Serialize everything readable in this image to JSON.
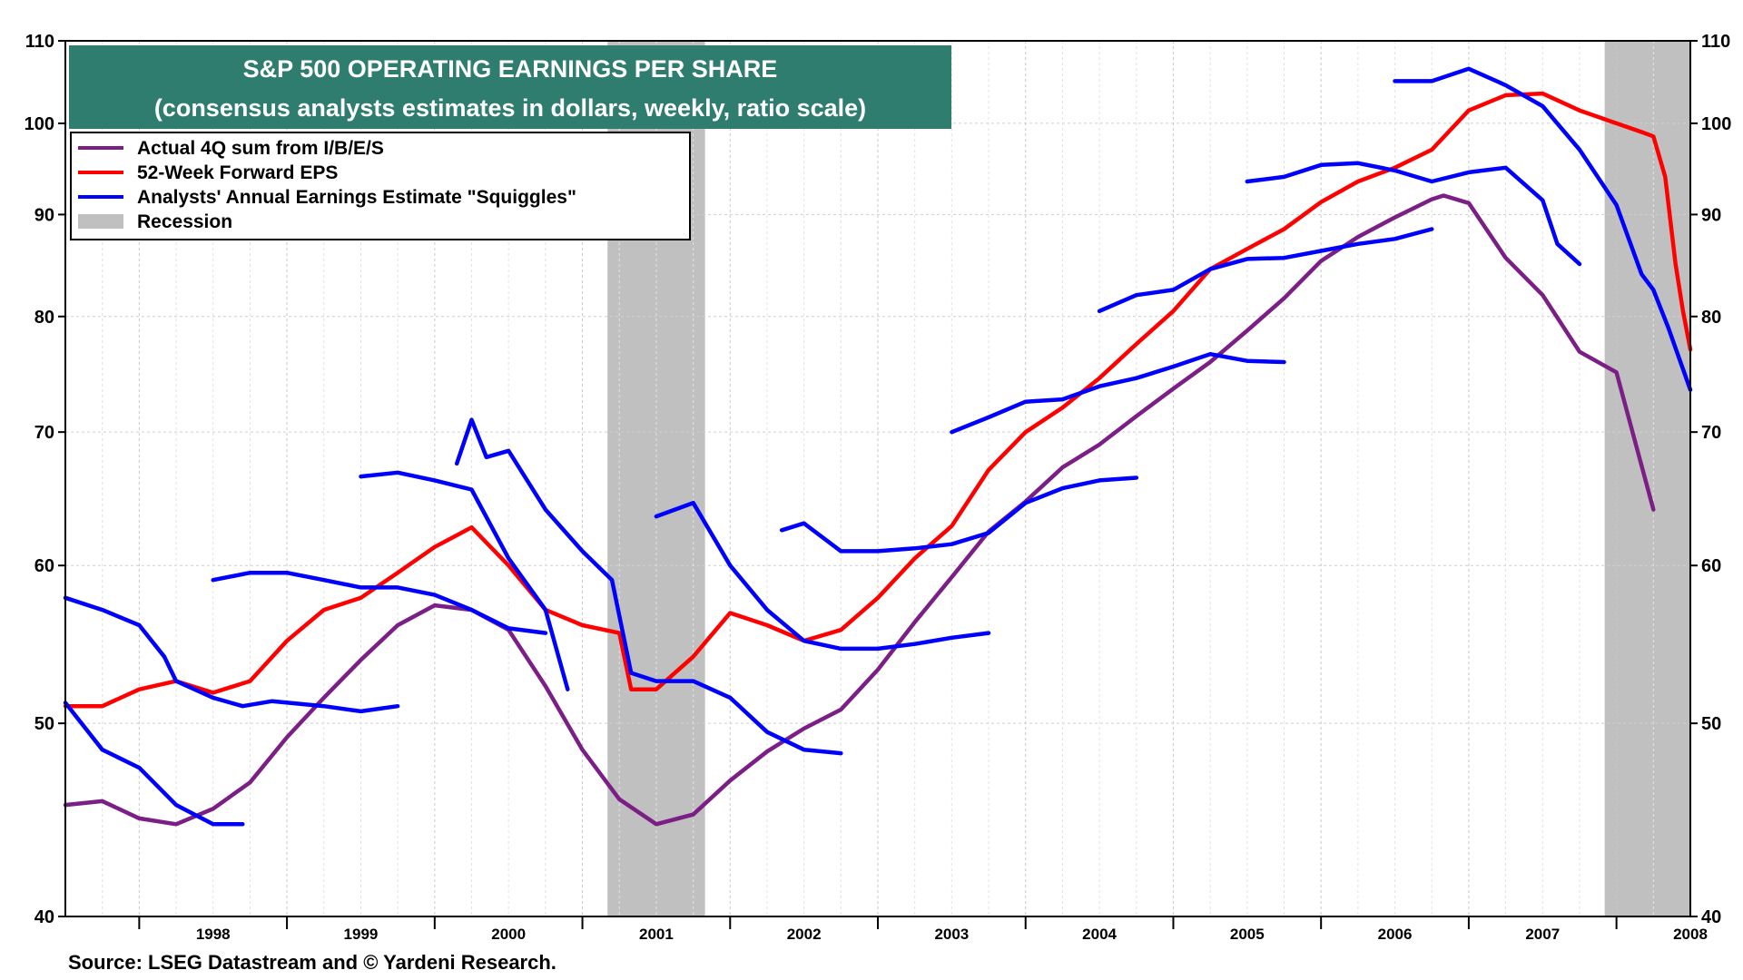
{
  "source": "Source: LSEG Datastream and © Yardeni Research.",
  "chart_data": {
    "type": "line",
    "title": "S&P 500 OPERATING EARNINGS PER SHARE",
    "subtitle": "(consensus analysts estimates in dollars, weekly, ratio scale)",
    "y_scale": "log",
    "ylim": [
      40,
      110
    ],
    "yticks": [
      40,
      50,
      60,
      70,
      80,
      90,
      100,
      110
    ],
    "xlim": [
      1997.5,
      2008.5
    ],
    "xtick_labels": [
      "1998",
      "1999",
      "2000",
      "2001",
      "2002",
      "2003",
      "2004",
      "2005",
      "2006",
      "2007",
      "2008"
    ],
    "grid": true,
    "legend_placement": "top-left",
    "colors": {
      "actual": "#7b1f86",
      "forward": "#ff0000",
      "squiggles": "#0000ff",
      "recession": "#c0c0c0",
      "title_bg": "#2e7d6e"
    },
    "recessions": [
      {
        "start": 2001.17,
        "end": 2001.83
      },
      {
        "start": 2007.92,
        "end": 2008.5
      }
    ],
    "legend": [
      {
        "key": "actual",
        "label": "Actual 4Q sum from  I/B/E/S"
      },
      {
        "key": "forward",
        "label": "52-Week Forward EPS"
      },
      {
        "key": "squiggles",
        "label": "Analysts' Annual Earnings Estimate \"Squiggles\""
      },
      {
        "key": "recession",
        "label": "Recession"
      }
    ],
    "series": [
      {
        "key": "actual",
        "name": "Actual 4Q sum from  I/B/E/S",
        "points": [
          [
            1997.5,
            45.5
          ],
          [
            1997.75,
            45.7
          ],
          [
            1998.0,
            44.8
          ],
          [
            1998.25,
            44.5
          ],
          [
            1998.5,
            45.3
          ],
          [
            1998.75,
            46.7
          ],
          [
            1999.0,
            49.2
          ],
          [
            1999.25,
            51.5
          ],
          [
            1999.5,
            53.8
          ],
          [
            1999.75,
            56.0
          ],
          [
            2000.0,
            57.3
          ],
          [
            2000.25,
            57.0
          ],
          [
            2000.5,
            55.7
          ],
          [
            2000.75,
            52.2
          ],
          [
            2001.0,
            48.5
          ],
          [
            2001.25,
            45.8
          ],
          [
            2001.5,
            44.5
          ],
          [
            2001.75,
            45.0
          ],
          [
            2002.0,
            46.8
          ],
          [
            2002.25,
            48.4
          ],
          [
            2002.5,
            49.7
          ],
          [
            2002.75,
            50.8
          ],
          [
            2003.0,
            53.2
          ],
          [
            2003.25,
            56.2
          ],
          [
            2003.5,
            59.2
          ],
          [
            2003.75,
            62.4
          ],
          [
            2004.0,
            64.6
          ],
          [
            2004.25,
            67.2
          ],
          [
            2004.5,
            69.0
          ],
          [
            2004.75,
            71.3
          ],
          [
            2005.0,
            73.6
          ],
          [
            2005.25,
            75.9
          ],
          [
            2005.5,
            78.7
          ],
          [
            2005.75,
            81.7
          ],
          [
            2006.0,
            85.3
          ],
          [
            2006.25,
            87.7
          ],
          [
            2006.5,
            89.7
          ],
          [
            2006.75,
            91.6
          ],
          [
            2006.83,
            92.0
          ],
          [
            2007.0,
            91.2
          ],
          [
            2007.25,
            85.6
          ],
          [
            2007.5,
            82.0
          ],
          [
            2007.75,
            76.8
          ],
          [
            2008.0,
            75.0
          ],
          [
            2008.25,
            64.0
          ]
        ]
      },
      {
        "key": "forward",
        "name": "52-Week Forward EPS",
        "points": [
          [
            1997.5,
            51.0
          ],
          [
            1997.75,
            51.0
          ],
          [
            1998.0,
            52.0
          ],
          [
            1998.25,
            52.5
          ],
          [
            1998.5,
            51.8
          ],
          [
            1998.75,
            52.5
          ],
          [
            1999.0,
            55.0
          ],
          [
            1999.25,
            57.0
          ],
          [
            1999.5,
            57.8
          ],
          [
            1999.75,
            59.5
          ],
          [
            2000.0,
            61.3
          ],
          [
            2000.25,
            62.7
          ],
          [
            2000.5,
            60.0
          ],
          [
            2000.75,
            57.0
          ],
          [
            2001.0,
            56.0
          ],
          [
            2001.25,
            55.5
          ],
          [
            2001.33,
            52.0
          ],
          [
            2001.5,
            52.0
          ],
          [
            2001.75,
            54.0
          ],
          [
            2002.0,
            56.8
          ],
          [
            2002.25,
            56.0
          ],
          [
            2002.5,
            55.0
          ],
          [
            2002.75,
            55.7
          ],
          [
            2003.0,
            57.8
          ],
          [
            2003.25,
            60.5
          ],
          [
            2003.5,
            62.8
          ],
          [
            2003.75,
            67.0
          ],
          [
            2004.0,
            70.0
          ],
          [
            2004.25,
            72.0
          ],
          [
            2004.5,
            74.5
          ],
          [
            2004.75,
            77.5
          ],
          [
            2005.0,
            80.5
          ],
          [
            2005.25,
            84.5
          ],
          [
            2005.5,
            86.5
          ],
          [
            2005.75,
            88.5
          ],
          [
            2006.0,
            91.3
          ],
          [
            2006.25,
            93.5
          ],
          [
            2006.5,
            95.0
          ],
          [
            2006.75,
            97.0
          ],
          [
            2007.0,
            101.5
          ],
          [
            2007.25,
            103.3
          ],
          [
            2007.5,
            103.5
          ],
          [
            2007.75,
            101.5
          ],
          [
            2008.0,
            100.0
          ],
          [
            2008.17,
            99.0
          ],
          [
            2008.25,
            98.5
          ],
          [
            2008.33,
            94.0
          ],
          [
            2008.4,
            85.0
          ],
          [
            2008.45,
            80.5
          ],
          [
            2008.5,
            77.0
          ]
        ]
      },
      {
        "key": "squiggles",
        "name": "Analysts' Annual Earnings Estimate \"Squiggles\"",
        "segments": [
          [
            [
              1997.5,
              57.8
            ],
            [
              1997.75,
              57.0
            ],
            [
              1998.0,
              56.0
            ],
            [
              1998.17,
              54.0
            ],
            [
              1998.25,
              52.5
            ],
            [
              1998.5,
              51.5
            ],
            [
              1998.7,
              51.0
            ],
            [
              1998.9,
              51.3
            ],
            [
              1999.25,
              51.0
            ],
            [
              1999.5,
              50.7
            ],
            [
              1999.75,
              51.0
            ]
          ],
          [
            [
              1997.5,
              51.2
            ],
            [
              1997.75,
              48.5
            ],
            [
              1998.0,
              47.5
            ],
            [
              1998.25,
              45.5
            ],
            [
              1998.5,
              44.5
            ],
            [
              1998.7,
              44.5
            ]
          ],
          [
            [
              1998.5,
              59.0
            ],
            [
              1998.75,
              59.5
            ],
            [
              1999.0,
              59.5
            ],
            [
              1999.25,
              59.0
            ],
            [
              1999.5,
              58.5
            ],
            [
              1999.75,
              58.5
            ],
            [
              2000.0,
              58.0
            ],
            [
              2000.25,
              57.0
            ],
            [
              2000.5,
              55.8
            ],
            [
              2000.75,
              55.5
            ]
          ],
          [
            [
              1999.5,
              66.5
            ],
            [
              1999.75,
              66.8
            ],
            [
              2000.0,
              66.2
            ],
            [
              2000.25,
              65.5
            ],
            [
              2000.5,
              60.5
            ],
            [
              2000.75,
              57.0
            ],
            [
              2000.9,
              52.0
            ]
          ],
          [
            [
              2000.15,
              67.5
            ],
            [
              2000.25,
              71.0
            ],
            [
              2000.35,
              68.0
            ],
            [
              2000.5,
              68.5
            ],
            [
              2000.75,
              64.0
            ],
            [
              2001.0,
              61.0
            ],
            [
              2001.2,
              59.0
            ],
            [
              2001.33,
              53.0
            ],
            [
              2001.5,
              52.5
            ],
            [
              2001.75,
              52.5
            ],
            [
              2002.0,
              51.5
            ],
            [
              2002.25,
              49.5
            ],
            [
              2002.5,
              48.5
            ],
            [
              2002.75,
              48.3
            ]
          ],
          [
            [
              2001.5,
              63.5
            ],
            [
              2001.75,
              64.5
            ],
            [
              2002.0,
              60.0
            ],
            [
              2002.25,
              57.0
            ],
            [
              2002.5,
              55.0
            ],
            [
              2002.75,
              54.5
            ],
            [
              2003.0,
              54.5
            ],
            [
              2003.25,
              54.8
            ],
            [
              2003.5,
              55.2
            ],
            [
              2003.75,
              55.5
            ]
          ],
          [
            [
              2002.35,
              62.5
            ],
            [
              2002.5,
              63.0
            ],
            [
              2002.75,
              61.0
            ],
            [
              2003.0,
              61.0
            ],
            [
              2003.25,
              61.2
            ],
            [
              2003.5,
              61.5
            ],
            [
              2003.75,
              62.3
            ],
            [
              2004.0,
              64.5
            ],
            [
              2004.25,
              65.6
            ],
            [
              2004.5,
              66.2
            ],
            [
              2004.75,
              66.4
            ]
          ],
          [
            [
              2003.5,
              70.0
            ],
            [
              2003.75,
              71.2
            ],
            [
              2004.0,
              72.5
            ],
            [
              2004.25,
              72.7
            ],
            [
              2004.5,
              73.8
            ],
            [
              2004.75,
              74.5
            ],
            [
              2005.0,
              75.5
            ],
            [
              2005.25,
              76.6
            ],
            [
              2005.5,
              76.0
            ],
            [
              2005.75,
              75.9
            ]
          ],
          [
            [
              2004.5,
              80.5
            ],
            [
              2004.75,
              82.0
            ],
            [
              2005.0,
              82.5
            ],
            [
              2005.25,
              84.5
            ],
            [
              2005.5,
              85.5
            ],
            [
              2005.75,
              85.6
            ],
            [
              2006.0,
              86.3
            ],
            [
              2006.25,
              87.0
            ],
            [
              2006.5,
              87.5
            ],
            [
              2006.75,
              88.5
            ]
          ],
          [
            [
              2005.5,
              93.5
            ],
            [
              2005.75,
              94.0
            ],
            [
              2006.0,
              95.3
            ],
            [
              2006.25,
              95.5
            ],
            [
              2006.5,
              94.7
            ],
            [
              2006.75,
              93.5
            ],
            [
              2007.0,
              94.5
            ],
            [
              2007.25,
              95.0
            ],
            [
              2007.5,
              91.5
            ],
            [
              2007.6,
              87.0
            ],
            [
              2007.75,
              85.0
            ]
          ],
          [
            [
              2006.5,
              105.0
            ],
            [
              2006.75,
              105.0
            ],
            [
              2007.0,
              106.5
            ],
            [
              2007.25,
              104.5
            ],
            [
              2007.5,
              102.0
            ],
            [
              2007.75,
              97.0
            ],
            [
              2008.0,
              91.0
            ],
            [
              2008.17,
              84.0
            ],
            [
              2008.25,
              82.5
            ],
            [
              2008.35,
              79.0
            ],
            [
              2008.5,
              73.5
            ]
          ]
        ]
      }
    ]
  }
}
